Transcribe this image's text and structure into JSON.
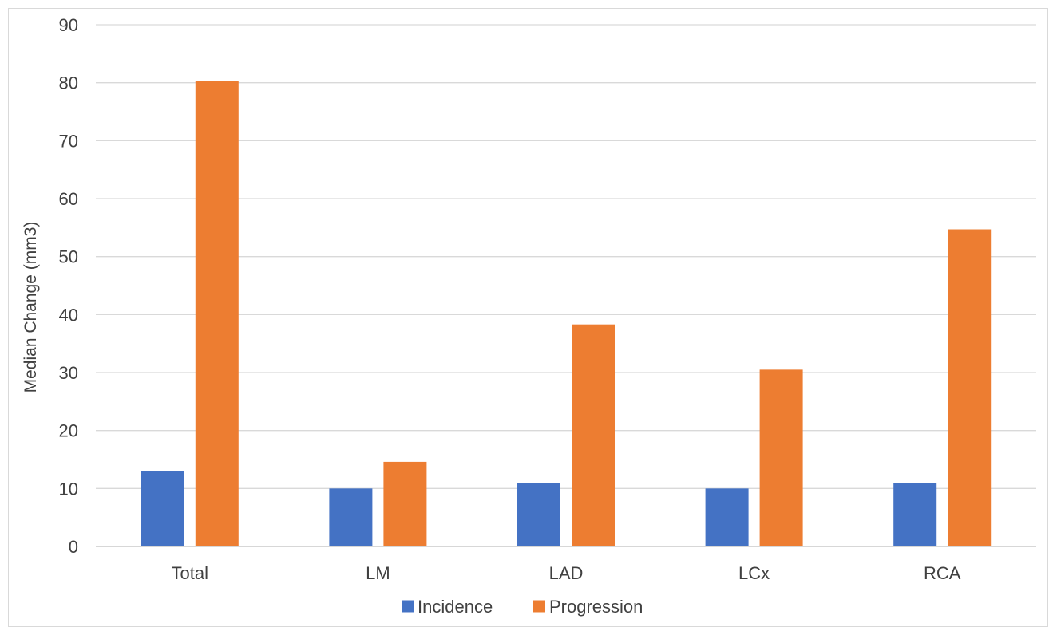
{
  "chart_data": {
    "type": "bar",
    "title": "",
    "xlabel": "",
    "ylabel": "Median Change (mm3)",
    "categories": [
      "Total",
      "LM",
      "LAD",
      "LCx",
      "RCA"
    ],
    "series": [
      {
        "name": "Incidence",
        "color": "#4472c4",
        "values": [
          13,
          10,
          11,
          10,
          11
        ]
      },
      {
        "name": "Progression",
        "color": "#ed7d31",
        "values": [
          80.3,
          14.6,
          38.3,
          30.5,
          54.7
        ]
      }
    ],
    "ylim": [
      0,
      90
    ],
    "yticks": [
      "0",
      "10",
      "20",
      "30",
      "40",
      "50",
      "60",
      "70",
      "80",
      "90"
    ],
    "grid": true,
    "legend_position": "bottom"
  }
}
